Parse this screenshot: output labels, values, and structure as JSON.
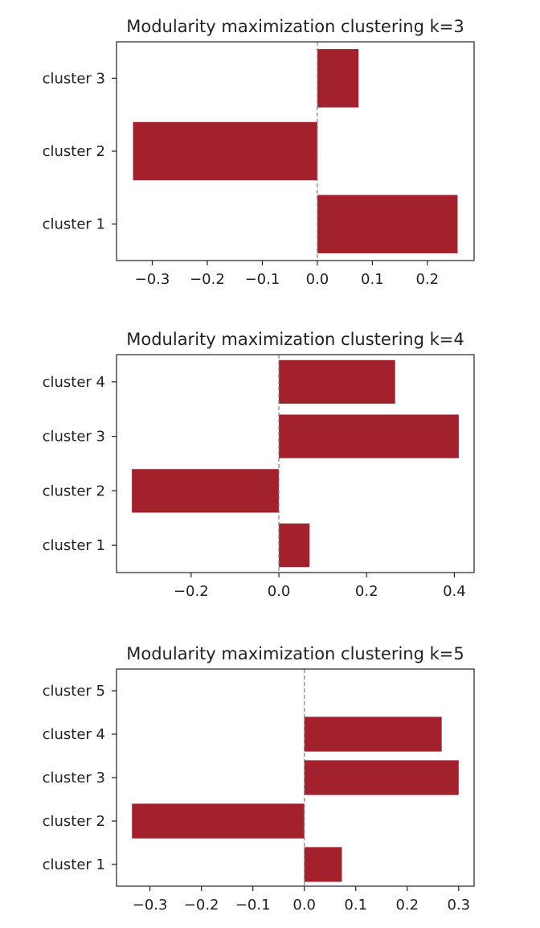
{
  "chart_data": [
    {
      "type": "bar",
      "orientation": "horizontal",
      "title": "Modularity maximization clustering k=3",
      "categories": [
        "cluster 1",
        "cluster 2",
        "cluster 3"
      ],
      "values": [
        0.255,
        -0.335,
        0.075
      ],
      "xlim": [
        -0.365,
        0.285
      ],
      "xticks": [
        -0.3,
        -0.2,
        -0.1,
        0.0,
        0.1,
        0.2
      ],
      "xtick_labels": [
        "−0.3",
        "−0.2",
        "−0.1",
        "0.0",
        "0.1",
        "0.2"
      ],
      "zero_line": "dashed",
      "bar_color": "#a3202d"
    },
    {
      "type": "bar",
      "orientation": "horizontal",
      "title": "Modularity maximization clustering k=4",
      "categories": [
        "cluster 1",
        "cluster 2",
        "cluster 3",
        "cluster 4"
      ],
      "values": [
        0.07,
        -0.335,
        0.41,
        0.265
      ],
      "xlim": [
        -0.37,
        0.445
      ],
      "xticks": [
        -0.2,
        0.0,
        0.2,
        0.4
      ],
      "xtick_labels": [
        "−0.2",
        "0.0",
        "0.2",
        "0.4"
      ],
      "zero_line": "dashed",
      "bar_color": "#a3202d"
    },
    {
      "type": "bar",
      "orientation": "horizontal",
      "title": "Modularity maximization clustering k=5",
      "categories": [
        "cluster 1",
        "cluster 2",
        "cluster 3",
        "cluster 4",
        "cluster 5"
      ],
      "values": [
        0.073,
        -0.335,
        0.3,
        0.267,
        0.0
      ],
      "xlim": [
        -0.365,
        0.33
      ],
      "xticks": [
        -0.3,
        -0.2,
        -0.1,
        0.0,
        0.1,
        0.2,
        0.3
      ],
      "xtick_labels": [
        "−0.3",
        "−0.2",
        "−0.1",
        "0.0",
        "0.1",
        "0.2",
        "0.3"
      ],
      "zero_line": "dashed",
      "bar_color": "#a3202d"
    }
  ]
}
